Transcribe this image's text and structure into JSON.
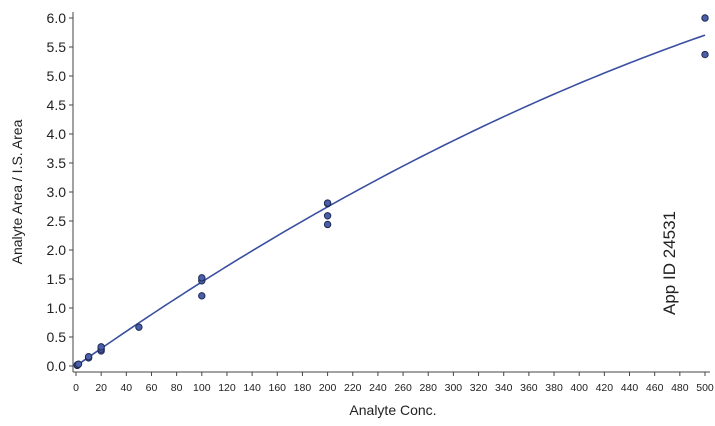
{
  "chart_data": {
    "type": "scatter",
    "title": "",
    "xlabel": "Analyte Conc.",
    "ylabel": "Analyte Area / I.S. Area",
    "xlim": [
      0,
      500
    ],
    "ylim": [
      0,
      6.0
    ],
    "x_ticks": [
      0,
      20,
      40,
      60,
      80,
      100,
      120,
      140,
      160,
      180,
      200,
      220,
      240,
      260,
      280,
      300,
      320,
      340,
      360,
      380,
      400,
      420,
      440,
      460,
      480,
      500
    ],
    "y_ticks": [
      0.0,
      0.5,
      1.0,
      1.5,
      2.0,
      2.5,
      3.0,
      3.5,
      4.0,
      4.5,
      5.0,
      5.5,
      6.0
    ],
    "grid": false,
    "annotation": "App ID 24531",
    "series": [
      {
        "type": "scatter",
        "color": "#4a5fa8",
        "points": [
          {
            "x": 1,
            "y": 0.01
          },
          {
            "x": 1,
            "y": 0.02
          },
          {
            "x": 2,
            "y": 0.03
          },
          {
            "x": 10,
            "y": 0.14
          },
          {
            "x": 10,
            "y": 0.16
          },
          {
            "x": 20,
            "y": 0.26
          },
          {
            "x": 20,
            "y": 0.29
          },
          {
            "x": 20,
            "y": 0.33
          },
          {
            "x": 50,
            "y": 0.67
          },
          {
            "x": 100,
            "y": 1.21
          },
          {
            "x": 100,
            "y": 1.47
          },
          {
            "x": 100,
            "y": 1.52
          },
          {
            "x": 200,
            "y": 2.44
          },
          {
            "x": 200,
            "y": 2.59
          },
          {
            "x": 200,
            "y": 2.8
          },
          {
            "x": 200,
            "y": 2.81
          },
          {
            "x": 500,
            "y": 5.37
          },
          {
            "x": 500,
            "y": 6.0
          }
        ]
      },
      {
        "type": "line",
        "color": "#3a4fa0",
        "fit": {
          "model": "quadratic",
          "coefficients": {
            "a": -7.7e-06,
            "b": 0.01526,
            "c": 0.0
          }
        }
      }
    ]
  }
}
